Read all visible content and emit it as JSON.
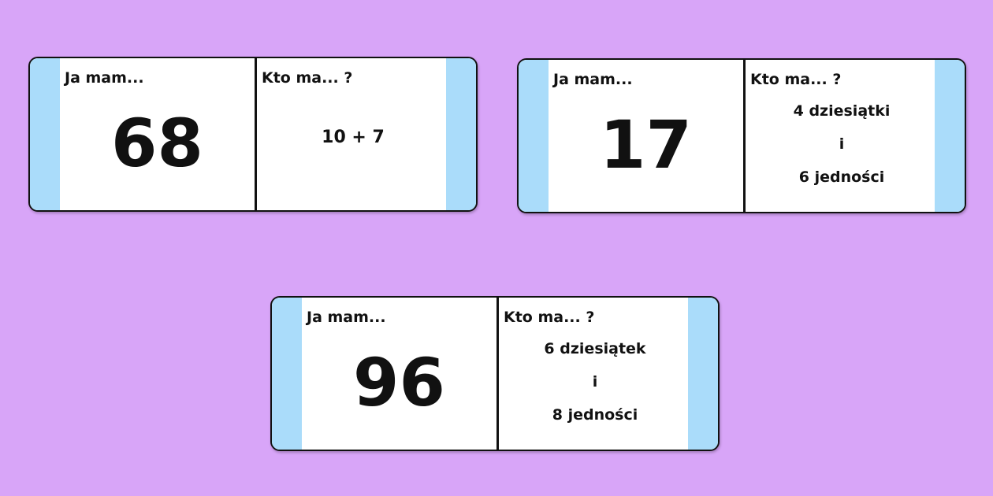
{
  "background_color": "#d8a5f8",
  "stripe_color": "#aadcfa",
  "cards": [
    {
      "have_label": "Ja mam...",
      "number": "68",
      "who_label": "Kto ma... ?",
      "question": [
        "10 + 7"
      ]
    },
    {
      "have_label": "Ja mam...",
      "number": "17",
      "who_label": "Kto ma... ?",
      "question": [
        "4 dziesiątki",
        "i",
        "6 jedności"
      ]
    },
    {
      "have_label": "Ja mam...",
      "number": "96",
      "who_label": "Kto ma... ?",
      "question": [
        "6 dziesiątek",
        "i",
        "8 jedności"
      ]
    }
  ]
}
